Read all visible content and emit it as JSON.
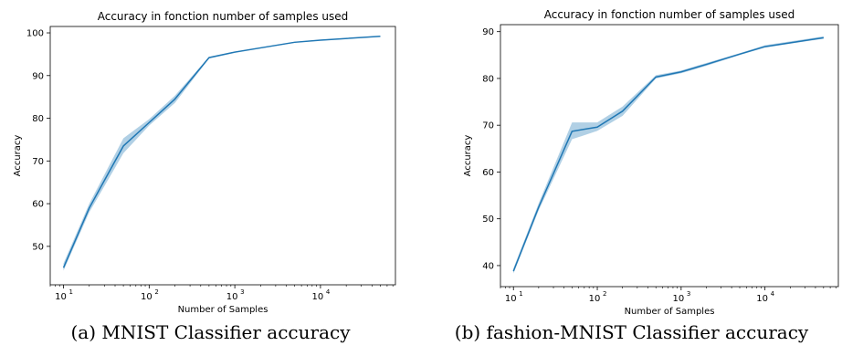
{
  "chart_data": [
    {
      "type": "line",
      "title": "Accuracy in fonction number of samples used",
      "xlabel": "Number of Samples",
      "ylabel": "Accuracy",
      "xscale": "log",
      "xlim": [
        7,
        75000
      ],
      "ylim": [
        41,
        101.5
      ],
      "xticks": [
        {
          "value": 10,
          "label": "10"
        },
        {
          "value": 100,
          "label": "10"
        },
        {
          "value": 1000,
          "label": "10"
        },
        {
          "value": 10000,
          "label": "10"
        }
      ],
      "xtick_exponents": [
        "1",
        "2",
        "3",
        "4"
      ],
      "yticks": [
        50,
        60,
        70,
        80,
        90,
        100
      ],
      "grid": false,
      "color": "#1f77b4",
      "series": [
        {
          "x": [
            10,
            20,
            50,
            100,
            200,
            500,
            1000,
            5000,
            10000,
            50000
          ],
          "y": [
            45.0,
            59.0,
            73.5,
            79.0,
            84.5,
            94.2,
            95.5,
            97.8,
            98.3,
            99.2
          ],
          "y_low": [
            44.3,
            58.0,
            71.8,
            78.3,
            83.6,
            94.0,
            95.3,
            97.7,
            98.2,
            99.1
          ],
          "y_high": [
            46.0,
            60.0,
            75.3,
            79.8,
            85.3,
            94.4,
            95.6,
            97.9,
            98.4,
            99.3
          ]
        }
      ]
    },
    {
      "type": "line",
      "title": "Accuracy in fonction number of samples used",
      "xlabel": "Number of Samples",
      "ylabel": "Accuracy",
      "xscale": "log",
      "xlim": [
        7,
        75000
      ],
      "ylim": [
        35.5,
        91.5
      ],
      "xticks": [
        {
          "value": 10,
          "label": "10"
        },
        {
          "value": 100,
          "label": "10"
        },
        {
          "value": 1000,
          "label": "10"
        },
        {
          "value": 10000,
          "label": "10"
        }
      ],
      "xtick_exponents": [
        "1",
        "2",
        "3",
        "4"
      ],
      "yticks": [
        40,
        50,
        60,
        70,
        80,
        90
      ],
      "grid": false,
      "color": "#1f77b4",
      "series": [
        {
          "x": [
            10,
            20,
            50,
            100,
            200,
            500,
            1000,
            2000,
            5000,
            10000,
            50000
          ],
          "y": [
            38.8,
            52.5,
            68.7,
            69.6,
            73.0,
            80.3,
            81.4,
            83.0,
            85.2,
            86.8,
            88.7
          ],
          "y_low": [
            38.3,
            51.8,
            67.0,
            68.8,
            72.0,
            80.0,
            81.1,
            82.7,
            85.0,
            86.6,
            88.5
          ],
          "y_high": [
            39.4,
            53.3,
            70.6,
            70.6,
            74.0,
            80.7,
            81.7,
            83.3,
            85.4,
            87.1,
            89.0
          ]
        }
      ]
    }
  ],
  "captions": {
    "a": "(a) MNIST Classifier accuracy",
    "b": "(b) fashion-MNIST Classifier accuracy"
  }
}
